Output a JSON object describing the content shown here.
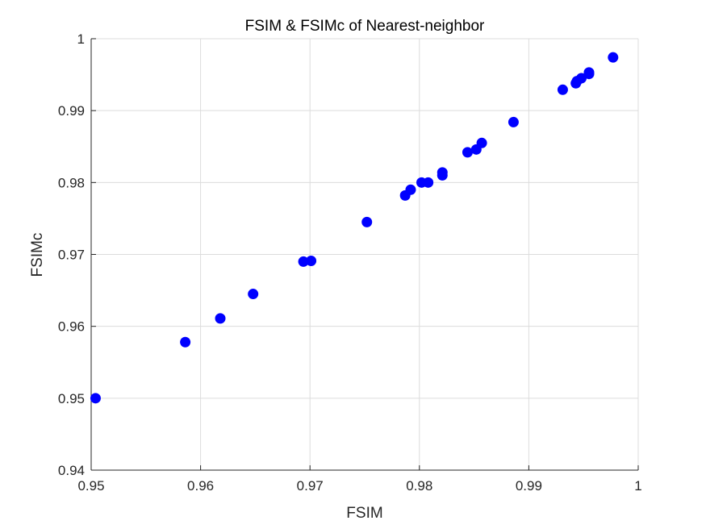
{
  "chart_data": {
    "type": "scatter",
    "title": "FSIM & FSIMc of Nearest-neighbor",
    "xlabel": "FSIM",
    "ylabel": "FSIMc",
    "xlim": [
      0.95,
      1.0
    ],
    "ylim": [
      0.94,
      1.0
    ],
    "xticks": [
      0.95,
      0.96,
      0.97,
      0.98,
      0.99,
      1.0
    ],
    "xtick_labels": [
      "0.95",
      "0.96",
      "0.97",
      "0.98",
      "0.99",
      "1"
    ],
    "yticks": [
      0.94,
      0.95,
      0.96,
      0.97,
      0.98,
      0.99,
      1.0
    ],
    "ytick_labels": [
      "0.94",
      "0.95",
      "0.96",
      "0.97",
      "0.98",
      "0.99",
      "1"
    ],
    "grid": true,
    "marker_color": "#0000ff",
    "points": [
      {
        "x": 0.9504,
        "y": 0.95
      },
      {
        "x": 0.9586,
        "y": 0.9578
      },
      {
        "x": 0.9618,
        "y": 0.9611
      },
      {
        "x": 0.9648,
        "y": 0.9645
      },
      {
        "x": 0.9694,
        "y": 0.969
      },
      {
        "x": 0.9701,
        "y": 0.9691
      },
      {
        "x": 0.9752,
        "y": 0.9745
      },
      {
        "x": 0.9787,
        "y": 0.9782
      },
      {
        "x": 0.9792,
        "y": 0.979
      },
      {
        "x": 0.9802,
        "y": 0.98
      },
      {
        "x": 0.9808,
        "y": 0.98
      },
      {
        "x": 0.9821,
        "y": 0.981
      },
      {
        "x": 0.9821,
        "y": 0.9814
      },
      {
        "x": 0.9844,
        "y": 0.9842
      },
      {
        "x": 0.9852,
        "y": 0.9846
      },
      {
        "x": 0.9857,
        "y": 0.9855
      },
      {
        "x": 0.9886,
        "y": 0.9884
      },
      {
        "x": 0.9931,
        "y": 0.9929
      },
      {
        "x": 0.9943,
        "y": 0.9938
      },
      {
        "x": 0.9944,
        "y": 0.9941
      },
      {
        "x": 0.9948,
        "y": 0.9945
      },
      {
        "x": 0.9955,
        "y": 0.9951
      },
      {
        "x": 0.9955,
        "y": 0.9953
      },
      {
        "x": 0.9977,
        "y": 0.9974
      }
    ]
  }
}
